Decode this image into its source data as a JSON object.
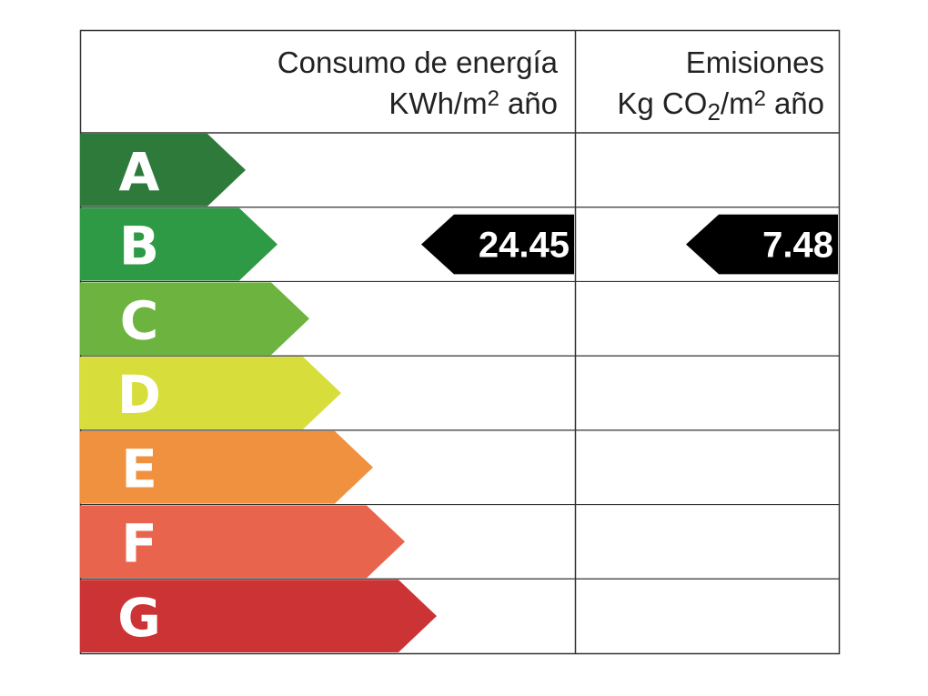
{
  "header": {
    "energy": {
      "title": "Consumo de energía",
      "unit": [
        "KWh/m",
        "2",
        "año"
      ]
    },
    "emissions": {
      "title": "Emisiones",
      "unit": [
        "Kg CO",
        "2",
        "/m",
        "2",
        "año"
      ]
    }
  },
  "ratings": [
    {
      "letter": "A",
      "color": "#2d7a3b"
    },
    {
      "letter": "B",
      "color": "#2f9a45"
    },
    {
      "letter": "C",
      "color": "#6cb33f"
    },
    {
      "letter": "D",
      "color": "#d7de3b"
    },
    {
      "letter": "E",
      "color": "#f0913f"
    },
    {
      "letter": "F",
      "color": "#e9644c"
    },
    {
      "letter": "G",
      "color": "#cc3335"
    }
  ],
  "energy_rating": {
    "letter": "B",
    "value": 24.45
  },
  "emissions_rating": {
    "letter": "B",
    "value": 7.48
  }
}
